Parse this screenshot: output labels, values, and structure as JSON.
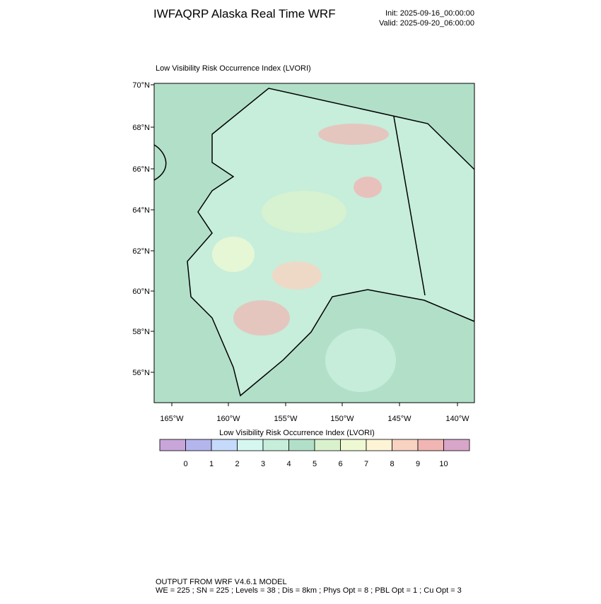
{
  "header": {
    "title": "IWFAQRP Alaska Real Time WRF",
    "init": "Init: 2025-09-16_00:00:00",
    "valid": "Valid: 2025-09-20_06:00:00"
  },
  "map": {
    "title": "Low Visibility Risk Occurrence Index   (LVORI)",
    "lat_labels": [
      "70°N",
      "68°N",
      "66°N",
      "64°N",
      "62°N",
      "60°N",
      "58°N",
      "56°N"
    ],
    "lon_labels": [
      "165°W",
      "160°W",
      "155°W",
      "150°W",
      "145°W",
      "140°W"
    ]
  },
  "colorbar": {
    "title": "Low Visibility Risk Occurrence Index  (LVORI)",
    "colors": [
      "#c9a6d9",
      "#b5b5ee",
      "#c6dafb",
      "#d5f7f0",
      "#c6eedb",
      "#b2dfc8",
      "#d9f2cd",
      "#eef9d4",
      "#fdf4d6",
      "#f8d3c2",
      "#f1b5b4",
      "#d8a6c9"
    ],
    "labels": [
      0,
      1,
      2,
      3,
      4,
      5,
      6,
      7,
      8,
      9,
      10
    ]
  },
  "footer": {
    "line1": "OUTPUT FROM WRF V4.6.1 MODEL",
    "line2": "WE = 225 ; SN = 225 ; Levels = 38 ; Dis = 8km ; Phys Opt = 8 ; PBL Opt = 1 ; Cu Opt = 3"
  }
}
